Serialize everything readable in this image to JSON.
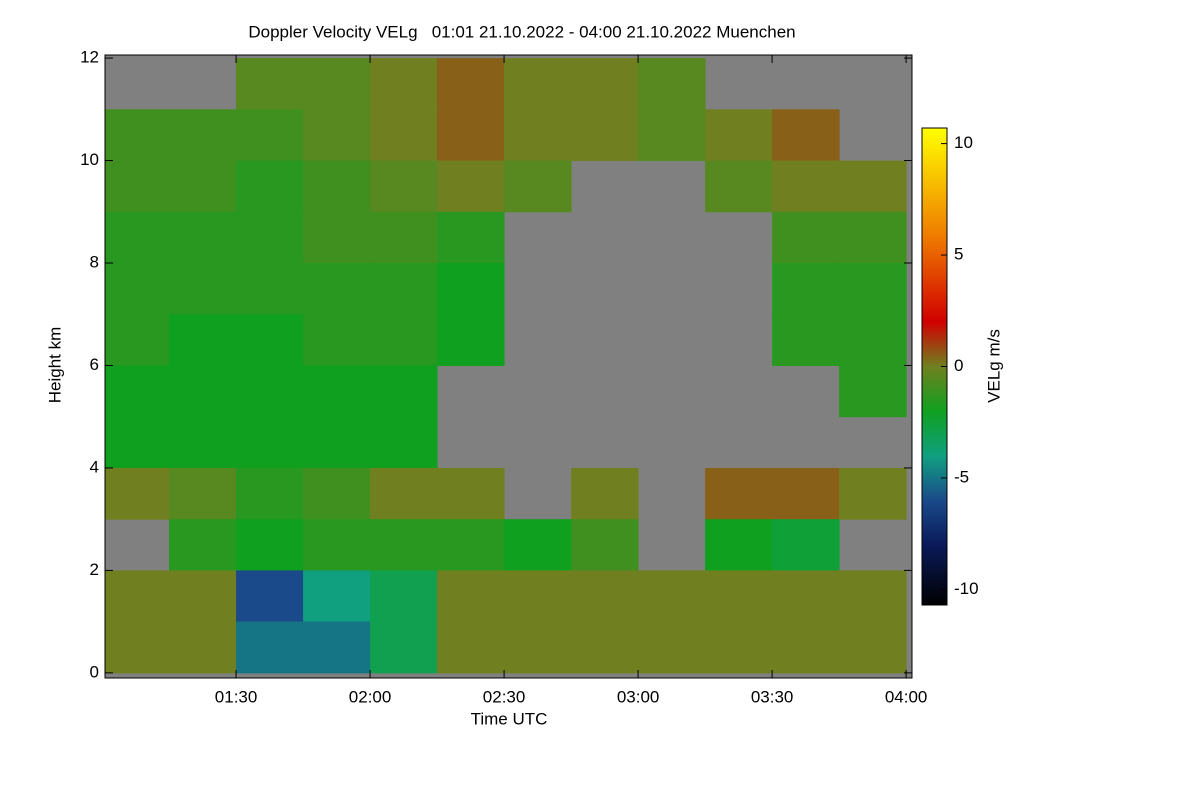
{
  "chart_data": {
    "type": "heatmap",
    "title": "Doppler Velocity VELg   01:01 21.10.2022 - 04:00 21.10.2022 Muenchen",
    "x_label": "Time UTC",
    "y_label": "Height km",
    "colorbar_label": "VELg m/s",
    "background_color": "#808080",
    "x": [
      1.125,
      1.375,
      1.625,
      1.875,
      2.125,
      2.375,
      2.625,
      2.875,
      3.125,
      3.375,
      3.625,
      3.875
    ],
    "y": [
      11.5,
      10.5,
      9.5,
      8.5,
      7.5,
      6.5,
      5.5,
      4.5,
      3.5,
      2.5,
      1.5,
      0.5
    ],
    "z": [
      [
        null,
        null,
        -0.5,
        -0.5,
        0,
        0.5,
        0,
        0,
        -0.5,
        null,
        null,
        null
      ],
      [
        -1,
        -1,
        -1,
        -0.5,
        0,
        0.5,
        0,
        0,
        -0.5,
        0,
        0.5,
        null
      ],
      [
        -1,
        -1,
        -1.5,
        -1,
        -0.5,
        0,
        -0.5,
        null,
        null,
        -0.5,
        0,
        0
      ],
      [
        -1.5,
        -1.5,
        -1.5,
        -1,
        -1,
        -1.5,
        null,
        null,
        null,
        null,
        -1,
        -1
      ],
      [
        -1.5,
        -1.5,
        -1.5,
        -1.5,
        -1.5,
        -2,
        null,
        null,
        null,
        null,
        -1.5,
        -1.5
      ],
      [
        -1.5,
        -2,
        -2,
        -1.5,
        -1.5,
        -2,
        null,
        null,
        null,
        null,
        -1.5,
        -1.5
      ],
      [
        -2,
        -2,
        -2,
        -2,
        -2,
        null,
        null,
        null,
        null,
        null,
        null,
        -1.5
      ],
      [
        -2,
        -2,
        -2,
        -2,
        -2,
        null,
        null,
        null,
        null,
        null,
        null,
        null
      ],
      [
        0,
        -0.5,
        -1.5,
        -1,
        0,
        0,
        null,
        0,
        null,
        0.5,
        0.5,
        0
      ],
      [
        null,
        -1.5,
        -2,
        -1.5,
        -1.5,
        -1.5,
        -2,
        -1,
        null,
        -2,
        -2.5,
        null
      ],
      [
        0,
        0,
        -6,
        -4,
        -3,
        0,
        0,
        0,
        0,
        0,
        0,
        0
      ],
      [
        0,
        0,
        -5,
        -5,
        -3,
        0,
        0,
        0,
        0,
        0,
        0,
        0
      ]
    ],
    "xlim": [
      1.011,
      4.022
    ],
    "ylim": [
      -0.1,
      12.06
    ],
    "zlim": [
      -10.7,
      10.7
    ],
    "xticks": [
      {
        "value": 1.5,
        "label": "01:30"
      },
      {
        "value": 2.0,
        "label": "02:00"
      },
      {
        "value": 2.5,
        "label": "02:30"
      },
      {
        "value": 3.0,
        "label": "03:00"
      },
      {
        "value": 3.5,
        "label": "03:30"
      },
      {
        "value": 4.0,
        "label": "04:00"
      }
    ],
    "yticks": [
      0,
      2,
      4,
      6,
      8,
      10,
      12
    ],
    "zticks": [
      -10,
      -5,
      0,
      5,
      10
    ],
    "colorscale": [
      [
        -10.7,
        "#000000"
      ],
      [
        -8,
        "#0a1a5a"
      ],
      [
        -6,
        "#1a4a8a"
      ],
      [
        -4,
        "#10a080"
      ],
      [
        -2,
        "#10a020"
      ],
      [
        0,
        "#708020"
      ],
      [
        2,
        "#d00000"
      ],
      [
        6,
        "#f08000"
      ],
      [
        10.7,
        "#ffff00"
      ]
    ]
  }
}
